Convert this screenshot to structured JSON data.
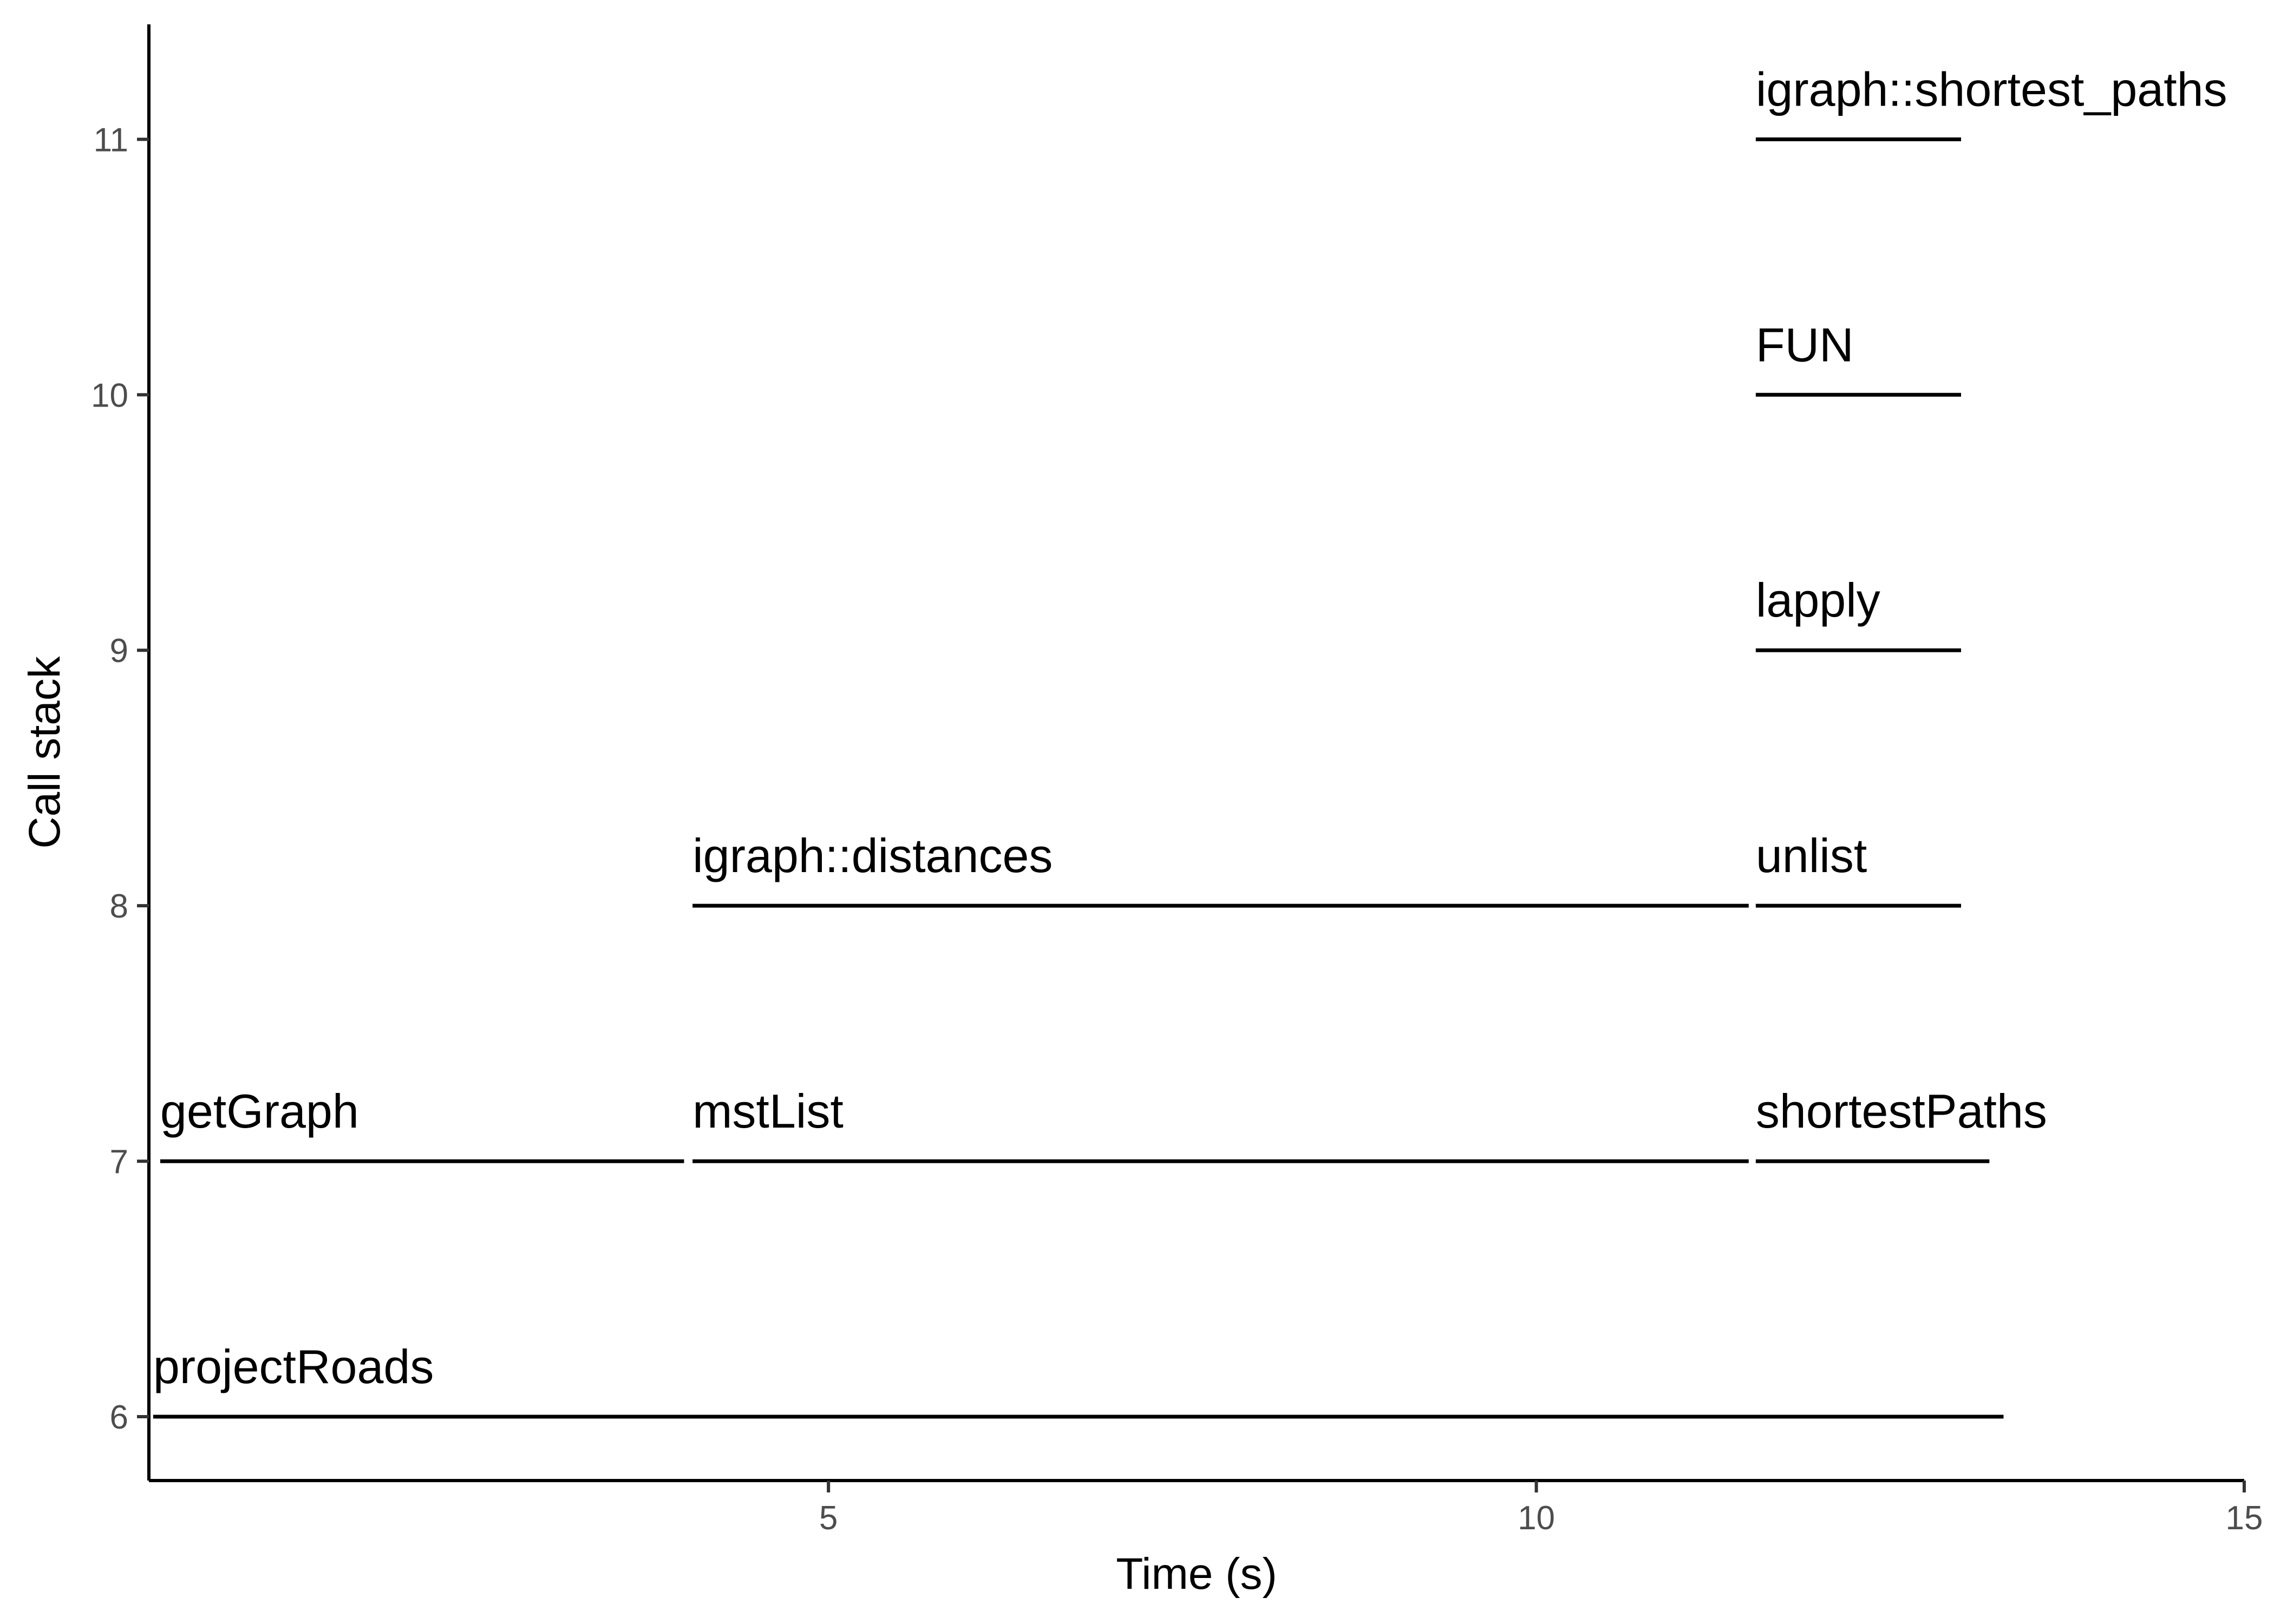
{
  "chart_data": {
    "type": "flame-segments",
    "title": "",
    "xlabel": "Time (s)",
    "ylabel": "Call stack",
    "xlim": [
      0.2,
      15
    ],
    "ylim": [
      5.75,
      11.45
    ],
    "xticks": [
      5,
      10,
      15
    ],
    "yticks": [
      6,
      7,
      8,
      9,
      10,
      11
    ],
    "grid": false,
    "segments": [
      {
        "label": "projectRoads",
        "x_start": 0.23,
        "x_end": 13.3,
        "depth": 6
      },
      {
        "label": "getGraph",
        "x_start": 0.28,
        "x_end": 3.98,
        "depth": 7
      },
      {
        "label": "mstList",
        "x_start": 4.04,
        "x_end": 11.5,
        "depth": 7
      },
      {
        "label": "shortestPaths",
        "x_start": 11.55,
        "x_end": 13.2,
        "depth": 7
      },
      {
        "label": "igraph::distances",
        "x_start": 4.04,
        "x_end": 11.5,
        "depth": 8
      },
      {
        "label": "unlist",
        "x_start": 11.55,
        "x_end": 13.0,
        "depth": 8
      },
      {
        "label": "lapply",
        "x_start": 11.55,
        "x_end": 13.0,
        "depth": 9
      },
      {
        "label": "FUN",
        "x_start": 11.55,
        "x_end": 13.0,
        "depth": 10
      },
      {
        "label": "igraph::shortest_paths",
        "x_start": 11.55,
        "x_end": 13.0,
        "depth": 11
      }
    ]
  }
}
